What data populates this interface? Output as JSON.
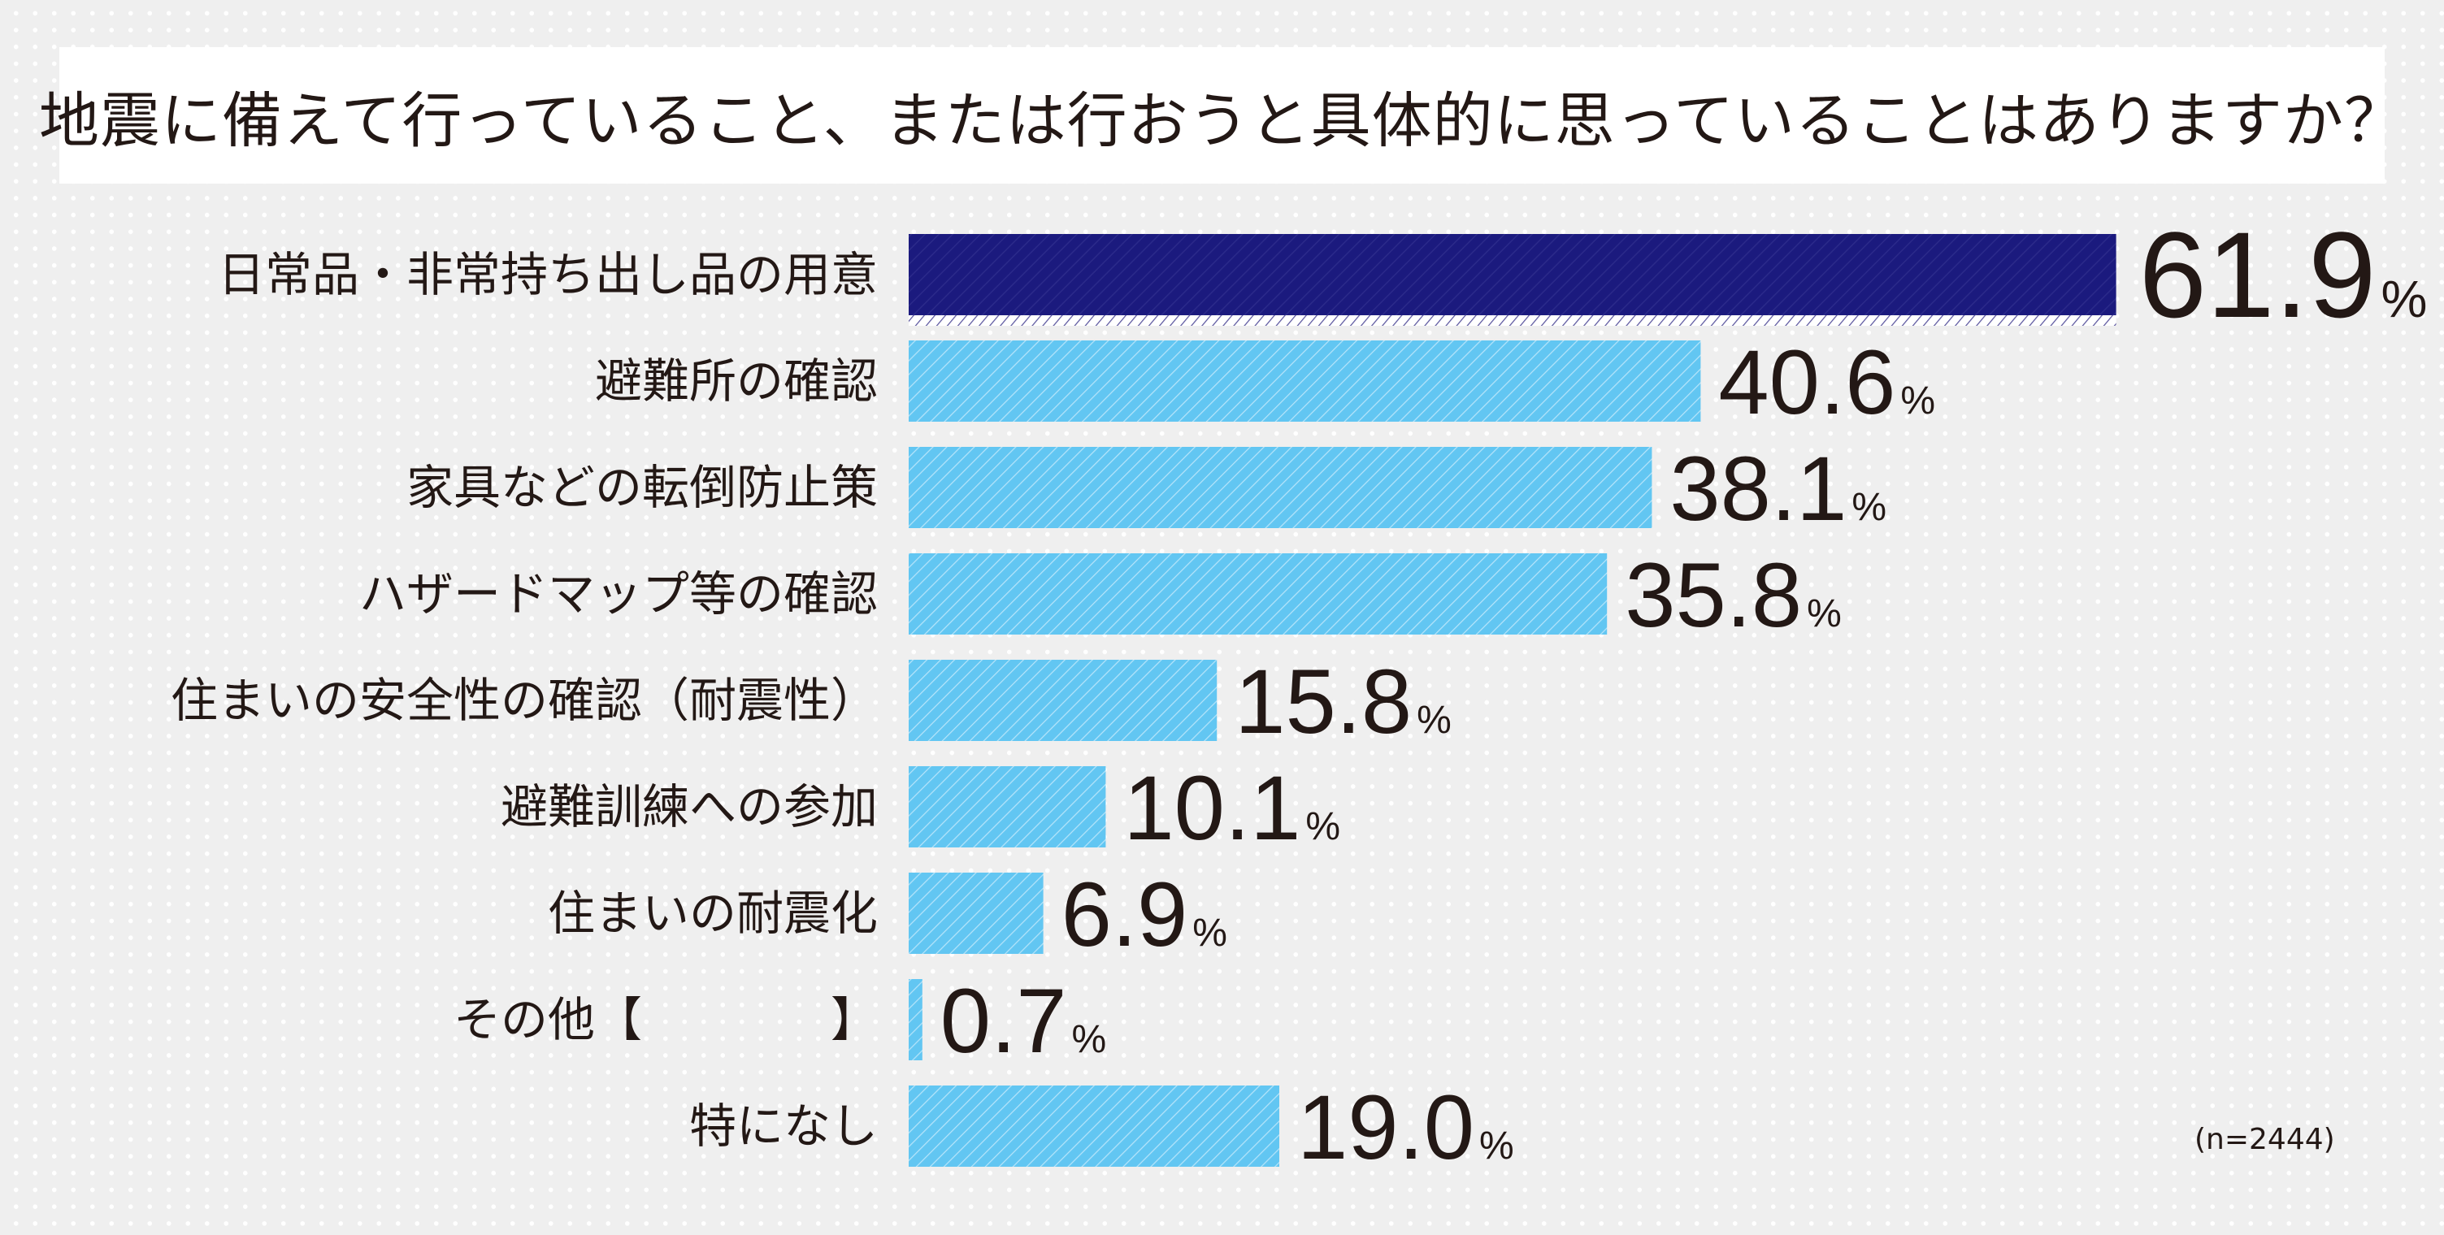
{
  "colors": {
    "highlight": "#1b1a7e",
    "bar": "#62c6f2",
    "text": "#231815",
    "background": "#efefef"
  },
  "chart_data": {
    "type": "bar",
    "orientation": "horizontal",
    "title": "地震に備えて行っていること、または行おうと具体的に思っていることはありますか？",
    "categories": [
      "日常品・非常持ち出し品の用意",
      "避難所の確認",
      "家具などの転倒防止策",
      "ハザードマップ等の確認",
      "住まいの安全性の確認（耐震性）",
      "避難訓練への参加",
      "住まいの耐震化",
      "その他【　　　　】",
      "特になし"
    ],
    "values": [
      61.9,
      40.6,
      38.1,
      35.8,
      15.8,
      10.1,
      6.9,
      0.7,
      19.0
    ],
    "value_labels": [
      "61.9",
      "40.6",
      "38.1",
      "35.8",
      "15.8",
      "10.1",
      "6.9",
      "0.7",
      "19.0"
    ],
    "unit": "%",
    "highlight_index": 0,
    "xlabel": "",
    "ylabel": "",
    "grid": false
  },
  "note": "(n=2444)"
}
